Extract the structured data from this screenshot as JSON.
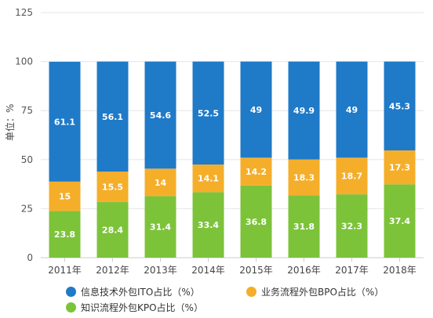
{
  "chart_data": {
    "type": "bar",
    "stacked": true,
    "ylabel": "单位：%",
    "ylim": [
      0,
      125
    ],
    "yticks": [
      0,
      25,
      50,
      75,
      100,
      125
    ],
    "grid": true,
    "legend_position": "bottom",
    "categories": [
      "2011年",
      "2012年",
      "2013年",
      "2014年",
      "2015年",
      "2016年",
      "2017年",
      "2018年"
    ],
    "series": [
      {
        "name": "知识流程外包KPO占比（%）",
        "color": "#7cc33a",
        "values": [
          23.8,
          28.4,
          31.4,
          33.4,
          36.8,
          31.8,
          32.3,
          37.4
        ]
      },
      {
        "name": "业务流程外包BPO占比（%）",
        "color": "#f5ae2a",
        "values": [
          15,
          15.5,
          14,
          14.1,
          14.2,
          18.3,
          18.7,
          17.3
        ]
      },
      {
        "name": "信息技术外包ITO占比（%）",
        "color": "#1f7ac8",
        "values": [
          61.1,
          56.1,
          54.6,
          52.5,
          49,
          49.9,
          49,
          45.3
        ]
      }
    ]
  }
}
